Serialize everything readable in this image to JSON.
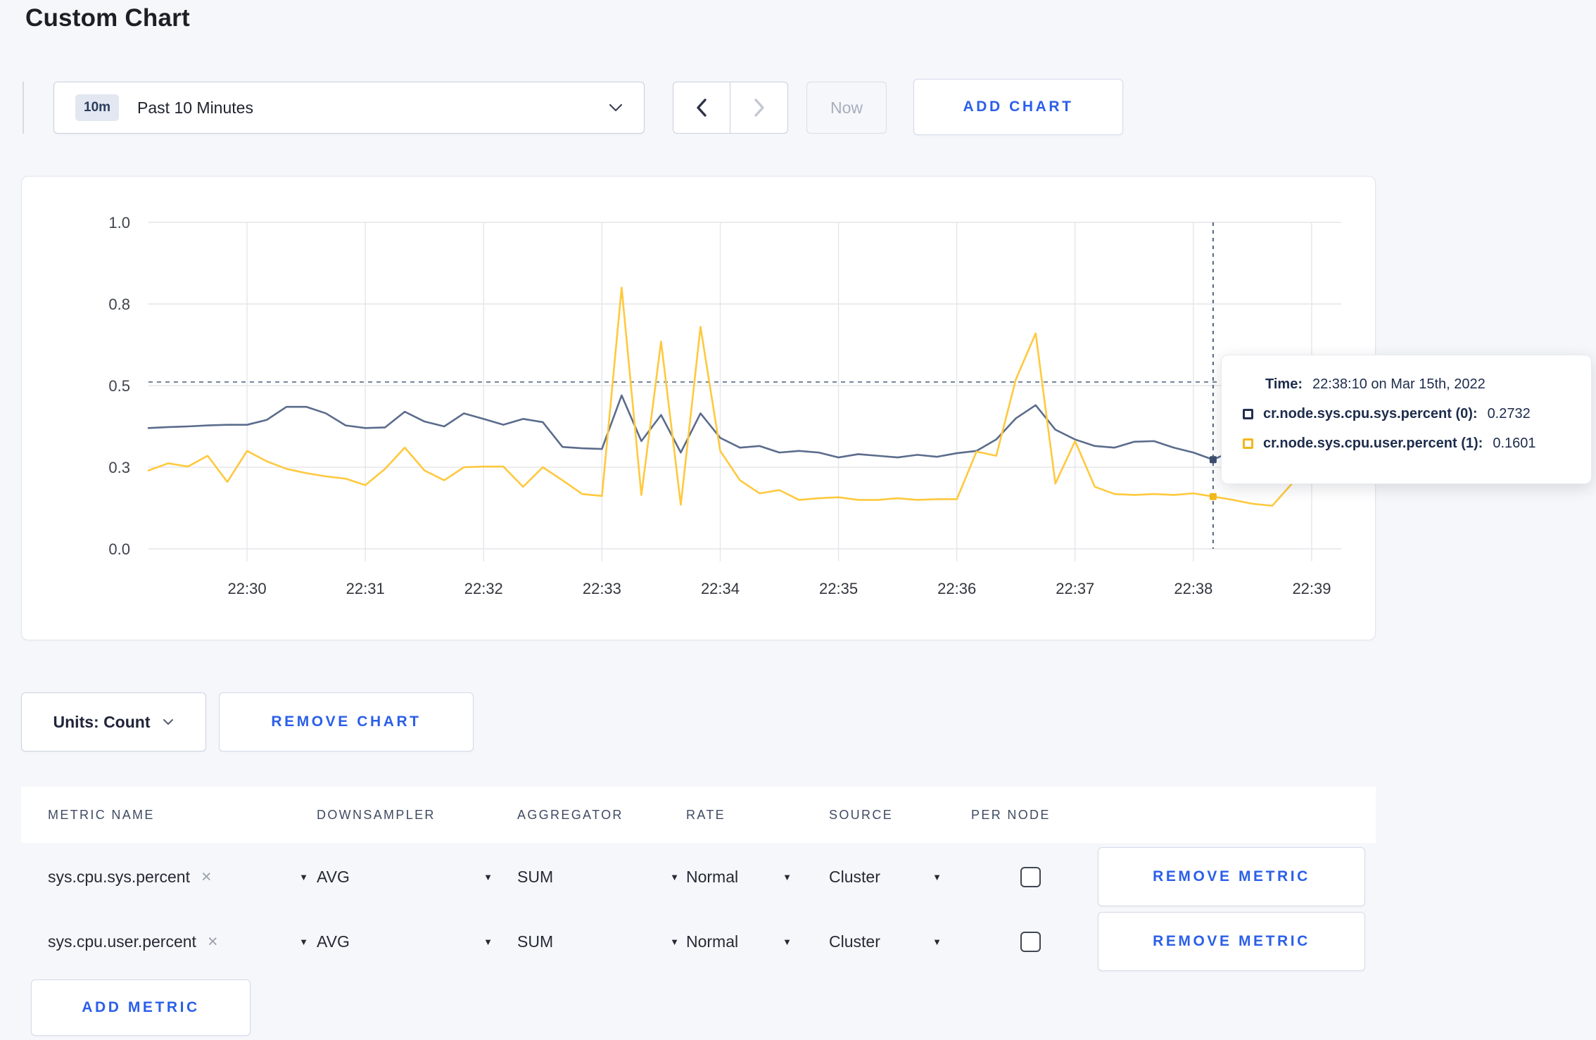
{
  "page": {
    "title": "Custom Chart",
    "accent": "#2b5fe9",
    "background": "#f6f7fa"
  },
  "toolbar": {
    "range_badge": "10m",
    "range_label": "Past 10 Minutes",
    "now_label": "Now",
    "add_chart_label": "ADD CHART"
  },
  "chart_data": {
    "type": "line",
    "title": "",
    "xlabel": "",
    "ylabel": "",
    "x_ticks": [
      "22:30",
      "22:31",
      "22:32",
      "22:33",
      "22:34",
      "22:35",
      "22:36",
      "22:37",
      "22:38",
      "22:39"
    ],
    "x_tick_first_s": 50,
    "x_tick_step_s": 60,
    "x_domain_s": 605,
    "first_point_s": 0,
    "step_s": 10,
    "ylim": [
      0,
      1
    ],
    "y_ticks": [
      {
        "v": 1.0,
        "label": "1.0"
      },
      {
        "v": 0.75,
        "label": "0.8"
      },
      {
        "v": 0.5,
        "label": "0.5"
      },
      {
        "v": 0.25,
        "label": "0.3"
      },
      {
        "v": 0.0,
        "label": "0.0"
      }
    ],
    "grid": true,
    "legend_position": "none",
    "guideline_value": 0.511,
    "crosshair": {
      "t_s": 540,
      "time_label": "22:38:10",
      "dots": [
        {
          "v": 0.2732,
          "color": "#3d4e6e"
        },
        {
          "v": 0.1601,
          "color": "#f2b71c"
        }
      ]
    },
    "series": [
      {
        "name": "cr.node.sys.cpu.sys.percent (0)",
        "color": "#5b6c8c",
        "values": [
          0.37,
          0.373,
          0.375,
          0.378,
          0.38,
          0.38,
          0.395,
          0.435,
          0.435,
          0.415,
          0.378,
          0.37,
          0.372,
          0.42,
          0.39,
          0.375,
          0.415,
          0.398,
          0.38,
          0.398,
          0.388,
          0.312,
          0.308,
          0.306,
          0.47,
          0.33,
          0.41,
          0.295,
          0.415,
          0.34,
          0.31,
          0.315,
          0.295,
          0.3,
          0.295,
          0.28,
          0.29,
          0.285,
          0.28,
          0.288,
          0.282,
          0.293,
          0.3,
          0.335,
          0.4,
          0.44,
          0.365,
          0.335,
          0.315,
          0.31,
          0.328,
          0.33,
          0.31,
          0.295,
          0.2732,
          0.3,
          0.33,
          0.305,
          0.285,
          0.3,
          0.29
        ]
      },
      {
        "name": "cr.node.sys.cpu.user.percent (1)",
        "color": "#ffc93e",
        "values": [
          0.24,
          0.262,
          0.252,
          0.285,
          0.205,
          0.3,
          0.268,
          0.245,
          0.232,
          0.222,
          0.215,
          0.195,
          0.245,
          0.31,
          0.24,
          0.21,
          0.25,
          0.252,
          0.252,
          0.19,
          0.25,
          0.21,
          0.168,
          0.162,
          0.8,
          0.165,
          0.635,
          0.135,
          0.68,
          0.3,
          0.21,
          0.17,
          0.18,
          0.15,
          0.155,
          0.158,
          0.15,
          0.15,
          0.155,
          0.15,
          0.152,
          0.152,
          0.298,
          0.285,
          0.52,
          0.66,
          0.2,
          0.33,
          0.19,
          0.168,
          0.165,
          0.168,
          0.165,
          0.17,
          0.1601,
          0.15,
          0.138,
          0.132,
          0.2,
          0.27,
          0.24
        ]
      }
    ]
  },
  "tooltip": {
    "time_label": "Time:",
    "time_value": "22:38:10 on Mar 15th, 2022",
    "rows": [
      {
        "label": "cr.node.sys.cpu.sys.percent (0):",
        "value": "0.2732",
        "swatch_color": "#22304f"
      },
      {
        "label": "cr.node.sys.cpu.user.percent (1):",
        "value": "0.1601",
        "swatch_color": "#f2b71c"
      }
    ]
  },
  "chart_footer": {
    "units_label": "Units: Count",
    "remove_chart_label": "REMOVE CHART"
  },
  "metrics_table": {
    "headers": [
      "METRIC NAME",
      "DOWNSAMPLER",
      "AGGREGATOR",
      "RATE",
      "SOURCE",
      "PER NODE"
    ],
    "rows": [
      {
        "metric": "sys.cpu.sys.percent",
        "downsampler": "AVG",
        "aggregator": "SUM",
        "rate": "Normal",
        "source": "Cluster",
        "per_node_checked": false,
        "remove_label": "REMOVE METRIC"
      },
      {
        "metric": "sys.cpu.user.percent",
        "downsampler": "AVG",
        "aggregator": "SUM",
        "rate": "Normal",
        "source": "Cluster",
        "per_node_checked": false,
        "remove_label": "REMOVE METRIC"
      }
    ],
    "add_metric_label": "ADD METRIC"
  }
}
